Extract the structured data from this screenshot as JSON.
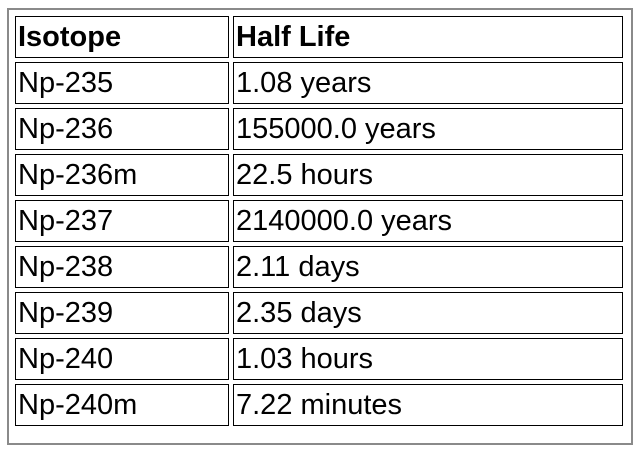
{
  "table": {
    "headers": [
      "Isotope",
      "Half Life"
    ],
    "rows": [
      [
        "Np-235",
        "1.08 years"
      ],
      [
        "Np-236",
        "155000.0 years"
      ],
      [
        "Np-236m",
        "22.5 hours"
      ],
      [
        "Np-237",
        "2140000.0 years"
      ],
      [
        "Np-238",
        "2.11 days"
      ],
      [
        "Np-239",
        "2.35 days"
      ],
      [
        "Np-240",
        "1.03 hours"
      ],
      [
        "Np-240m",
        "7.22 minutes"
      ]
    ]
  }
}
